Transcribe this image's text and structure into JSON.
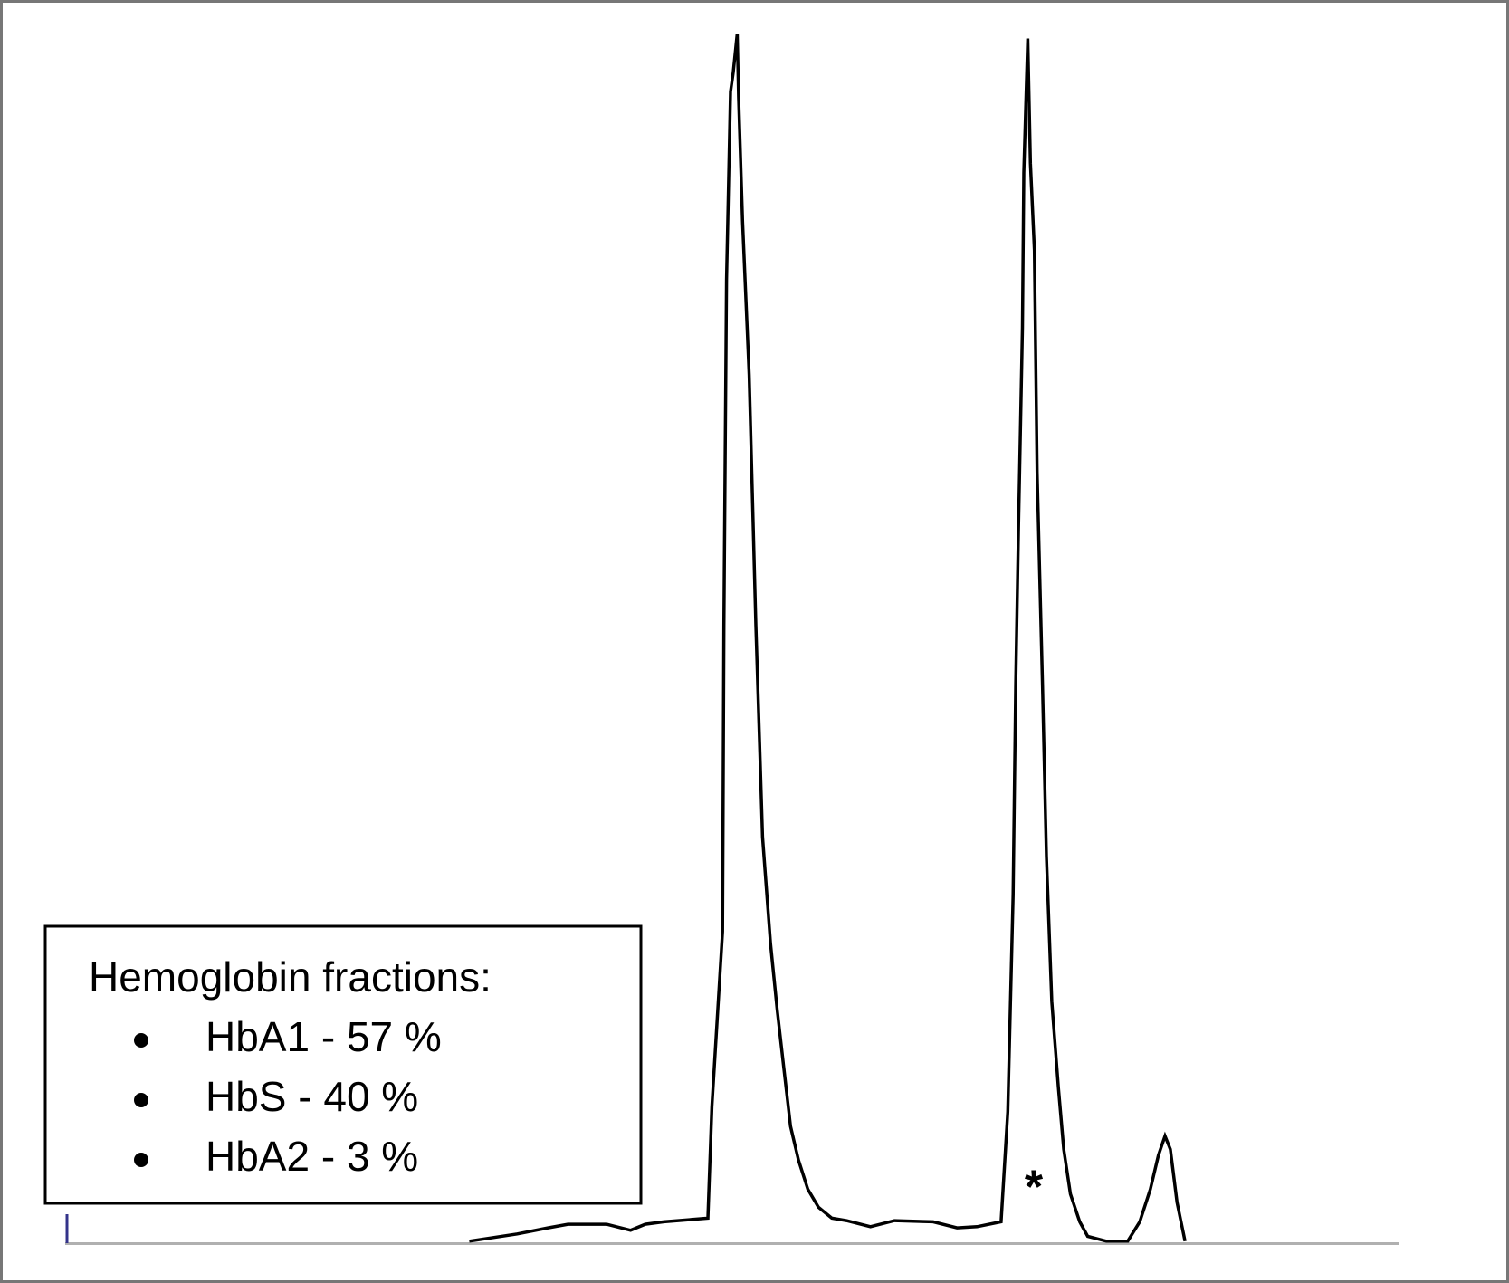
{
  "chart_data": {
    "type": "line",
    "color": "#000000",
    "xlim": [
      0,
      100
    ],
    "ylim": [
      0,
      100
    ],
    "x": [
      30.3,
      33.9,
      36.2,
      37.7,
      40.6,
      42.4,
      43.5,
      44.9,
      48.2,
      48.5,
      49.3,
      49.4,
      49.6,
      49.9,
      50.1,
      50.4,
      50.5,
      50.8,
      51.3,
      51.8,
      52.3,
      52.9,
      53.4,
      53.9,
      54.4,
      55.0,
      55.7,
      56.5,
      57.5,
      58.6,
      60.4,
      62.2,
      65.1,
      66.9,
      68.4,
      70.2,
      70.7,
      71.1,
      71.3,
      71.5,
      71.8,
      71.9,
      72.2,
      72.4,
      72.7,
      72.9,
      73.3,
      73.6,
      74.0,
      74.5,
      74.9,
      75.4,
      76.1,
      76.7,
      78.1,
      79.7,
      80.6,
      81.4,
      82.0,
      82.5,
      82.9,
      83.4,
      84.0
    ],
    "values": [
      0.2,
      0.8,
      1.3,
      1.6,
      1.6,
      1.1,
      1.6,
      1.8,
      2.1,
      11.3,
      25.8,
      51.1,
      79.7,
      95.2,
      96.8,
      100,
      94.8,
      84.5,
      71.8,
      51.1,
      33.6,
      24.8,
      19.3,
      14.5,
      9.7,
      6.9,
      4.5,
      3.0,
      2.1,
      1.9,
      1.4,
      1.9,
      1.8,
      1.3,
      1.4,
      1.8,
      10.9,
      28.8,
      46.3,
      59.0,
      75.7,
      88.5,
      99.6,
      89.3,
      82.1,
      63.8,
      46.3,
      32.0,
      20.0,
      12.9,
      7.8,
      4.1,
      1.8,
      0.6,
      0.2,
      0.2,
      1.8,
      4.5,
      7.3,
      8.9,
      7.8,
      3.4,
      0.2
    ],
    "annotation": "*",
    "legend": {
      "title": "Hemoglobin fractions:",
      "items": [
        "HbA1 - 57 %",
        "HbS - 40 %",
        "HbA2 - 3 %"
      ]
    }
  }
}
